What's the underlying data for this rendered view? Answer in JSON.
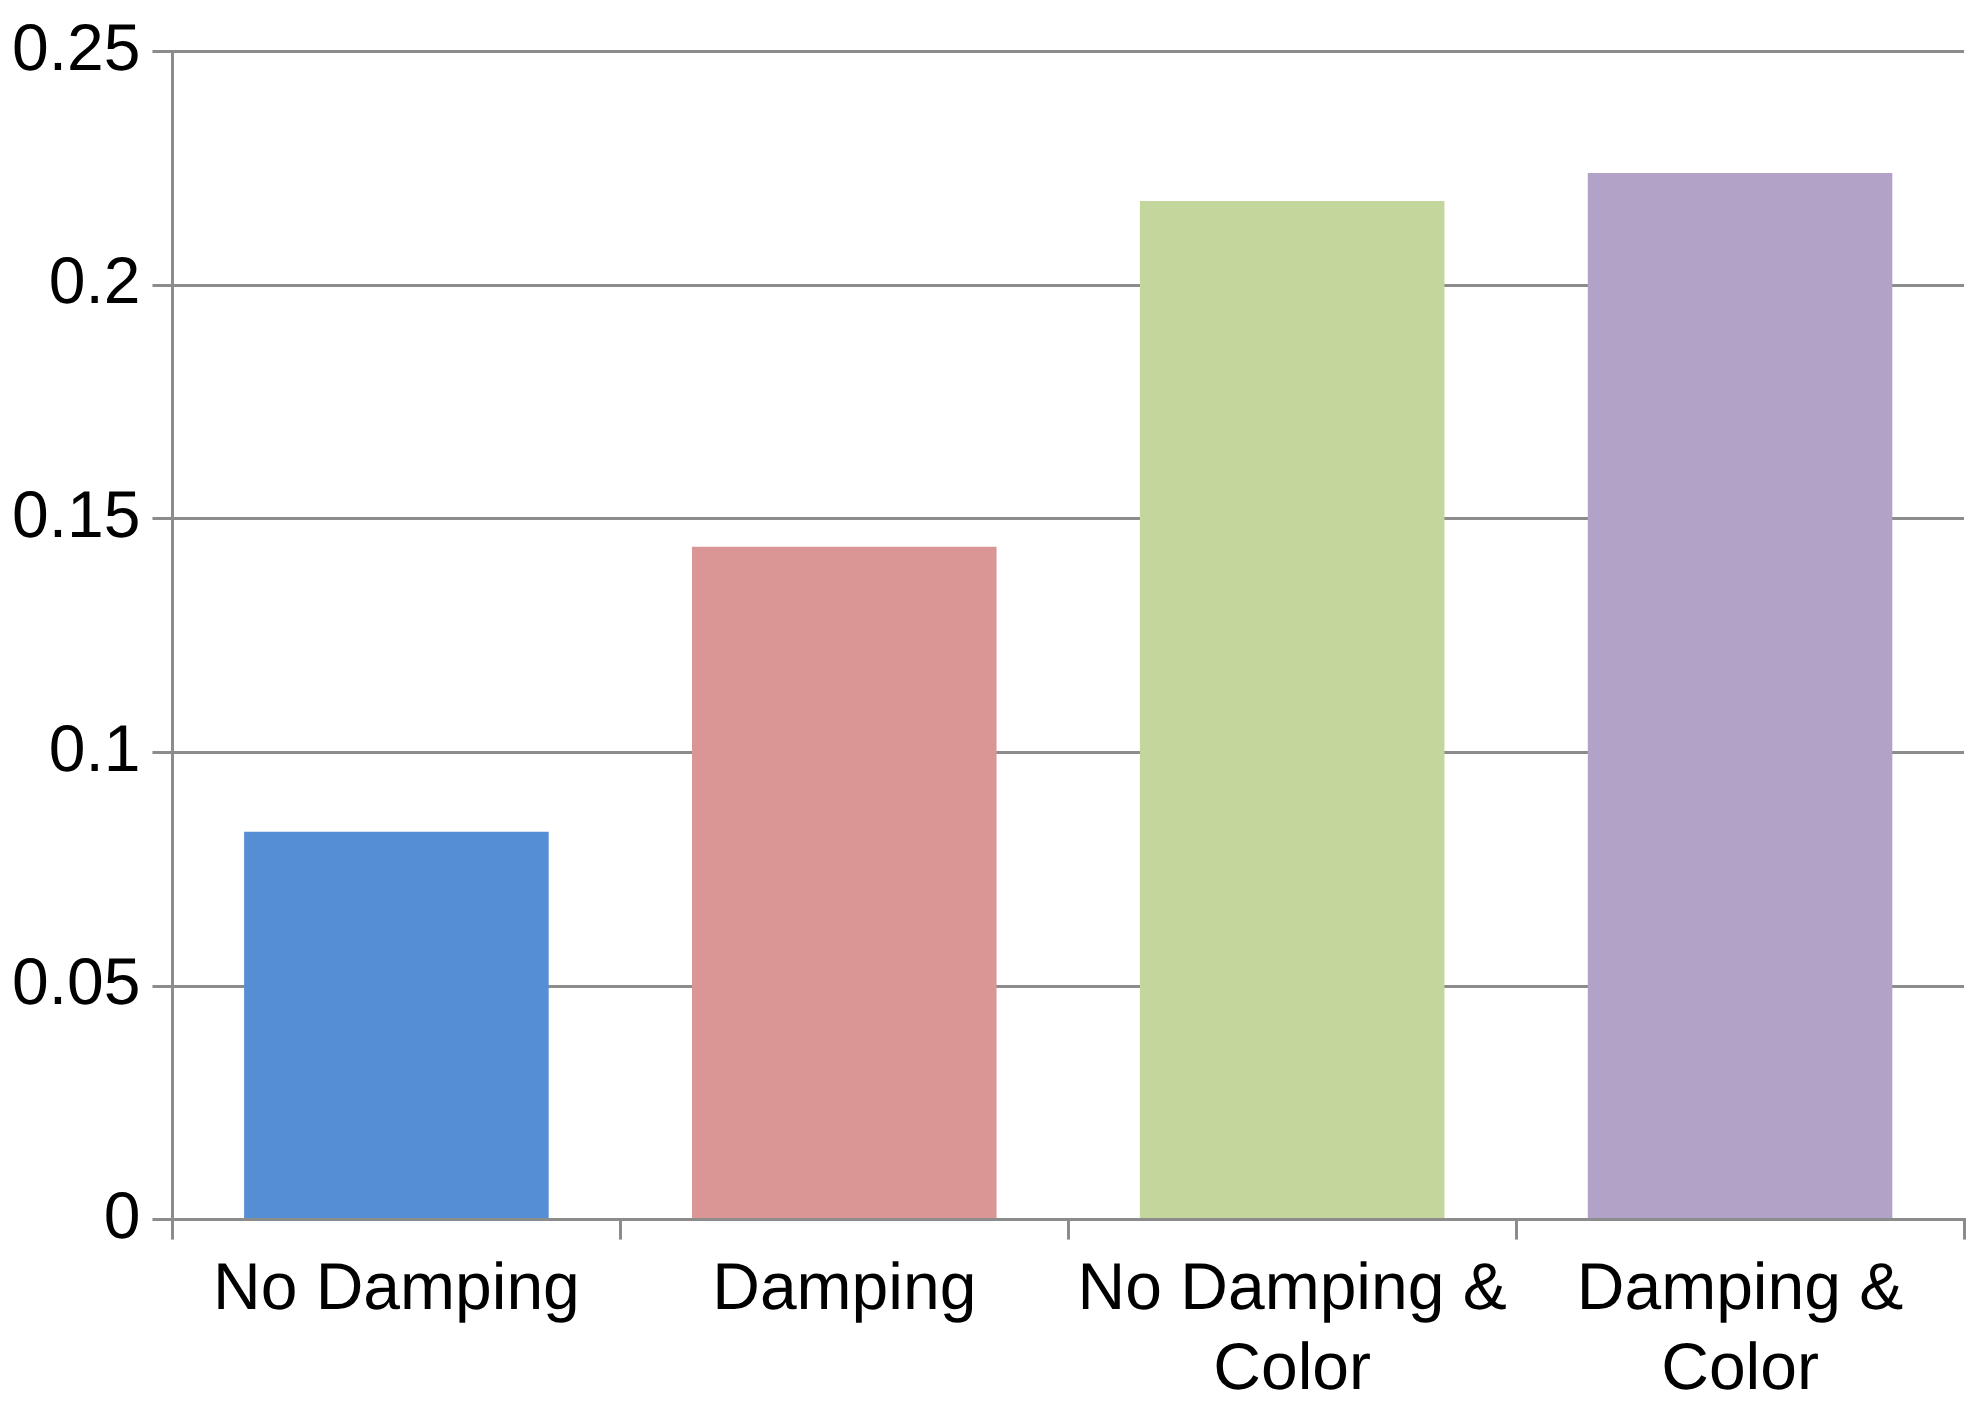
{
  "chart_data": {
    "type": "bar",
    "categories": [
      "No Damping",
      "Damping",
      "No Damping & Color",
      "Damping & Color"
    ],
    "values": [
      0.083,
      0.144,
      0.218,
      0.224
    ],
    "colors": [
      "#558ed5",
      "#d99694",
      "#c3d69b",
      "#b3a2c7"
    ],
    "ylim": [
      0,
      0.25
    ],
    "yticks": [
      0,
      0.05,
      0.1,
      0.15,
      0.2,
      0.25
    ],
    "grid": "y",
    "legend": false
  }
}
